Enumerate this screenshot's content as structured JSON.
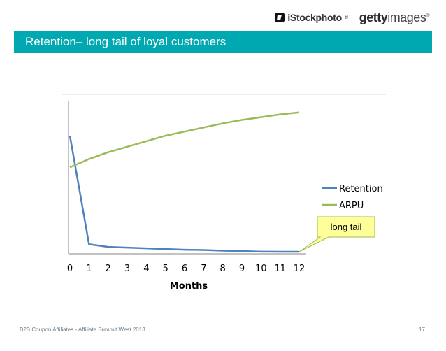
{
  "header": {
    "istock_logo": "iStockphoto",
    "getty_logo_bold": "getty",
    "getty_logo_regular": "images",
    "registered": "®"
  },
  "title": "Retention– long tail of loyal customers",
  "chart_data": {
    "type": "line",
    "x": [
      0,
      1,
      2,
      3,
      4,
      5,
      6,
      7,
      8,
      9,
      10,
      11,
      12
    ],
    "tick_labels": [
      "0",
      "1",
      "2",
      "3",
      "4",
      "5",
      "6",
      "7",
      "8",
      "9",
      "10",
      "11",
      "12"
    ],
    "xlabel": "Months",
    "ylabel": "",
    "ylim": [
      0,
      100
    ],
    "grid": false,
    "legend_position": "right",
    "series": [
      {
        "name": "Retention",
        "color": "#4f81bd",
        "values": [
          85,
          6,
          4,
          3.5,
          3,
          2.5,
          2,
          1.8,
          1.3,
          1,
          0.6,
          0.5,
          0.5
        ]
      },
      {
        "name": "ARPU",
        "color": "#9bbb59",
        "values": [
          62,
          68,
          73,
          77,
          81,
          85,
          88,
          91,
          94,
          96.5,
          98.5,
          100.5,
          102
        ]
      }
    ],
    "annotations": [
      {
        "text": "long tail",
        "points_to_x": 12
      }
    ]
  },
  "footer": {
    "text": "B2B Coupon Affiliates - Affiliate Summit West 2013",
    "page_number": "17"
  }
}
